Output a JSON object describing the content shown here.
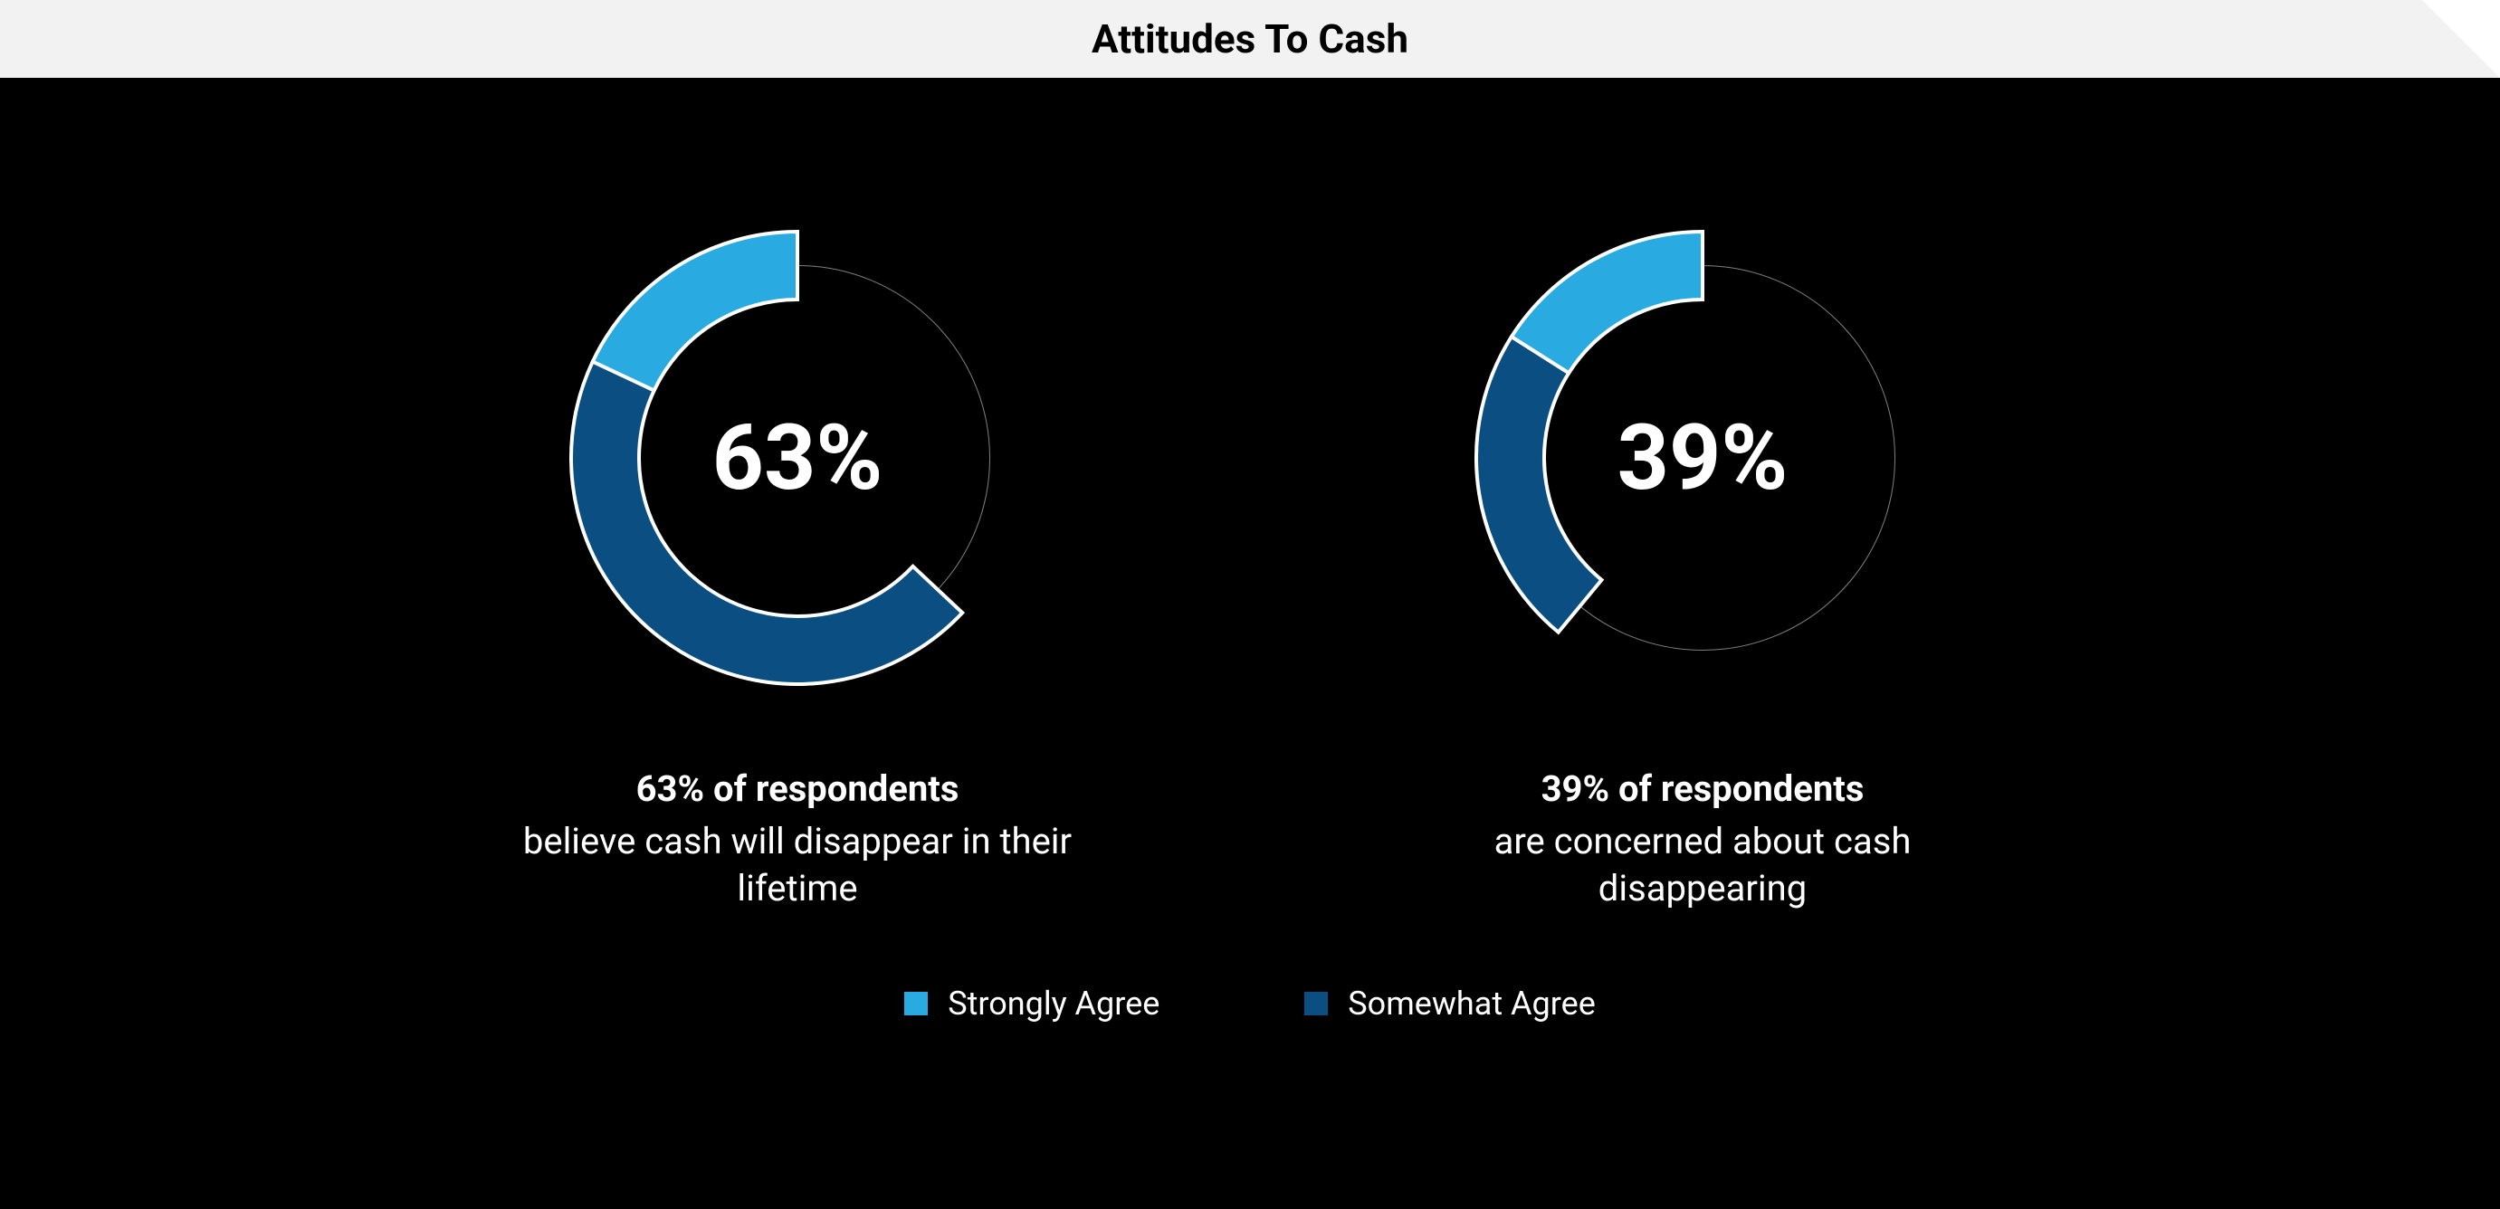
{
  "title": "Attitudes To Cash",
  "background_color": "#000000",
  "titlebar_color": "#f2f2f2",
  "text_color": "#ffffff",
  "donut": {
    "type": "donut",
    "outer_radius": 250,
    "inner_radius": 175,
    "track_stroke_color": "#808080",
    "track_stroke_width": 1,
    "segment_border_color": "#ffffff",
    "segment_border_width": 4,
    "colors": {
      "strongly_agree": "#29abe2",
      "somewhat_agree": "#0b4e82"
    },
    "center_fontsize": 100,
    "caption_fontsize": 40
  },
  "charts": [
    {
      "center_value": "63%",
      "strongly_pct": 18,
      "somewhat_pct": 45,
      "caption_line1": "63% of respondents",
      "caption_line2": "believe cash will disappear in their lifetime"
    },
    {
      "center_value": "39%",
      "strongly_pct": 16,
      "somewhat_pct": 23,
      "caption_line1": "39% of respondents",
      "caption_line2": "are concerned about cash disappearing"
    }
  ],
  "legend": [
    {
      "color": "#29abe2",
      "label": "Strongly Agree"
    },
    {
      "color": "#0b4e82",
      "label": "Somewhat Agree"
    }
  ]
}
